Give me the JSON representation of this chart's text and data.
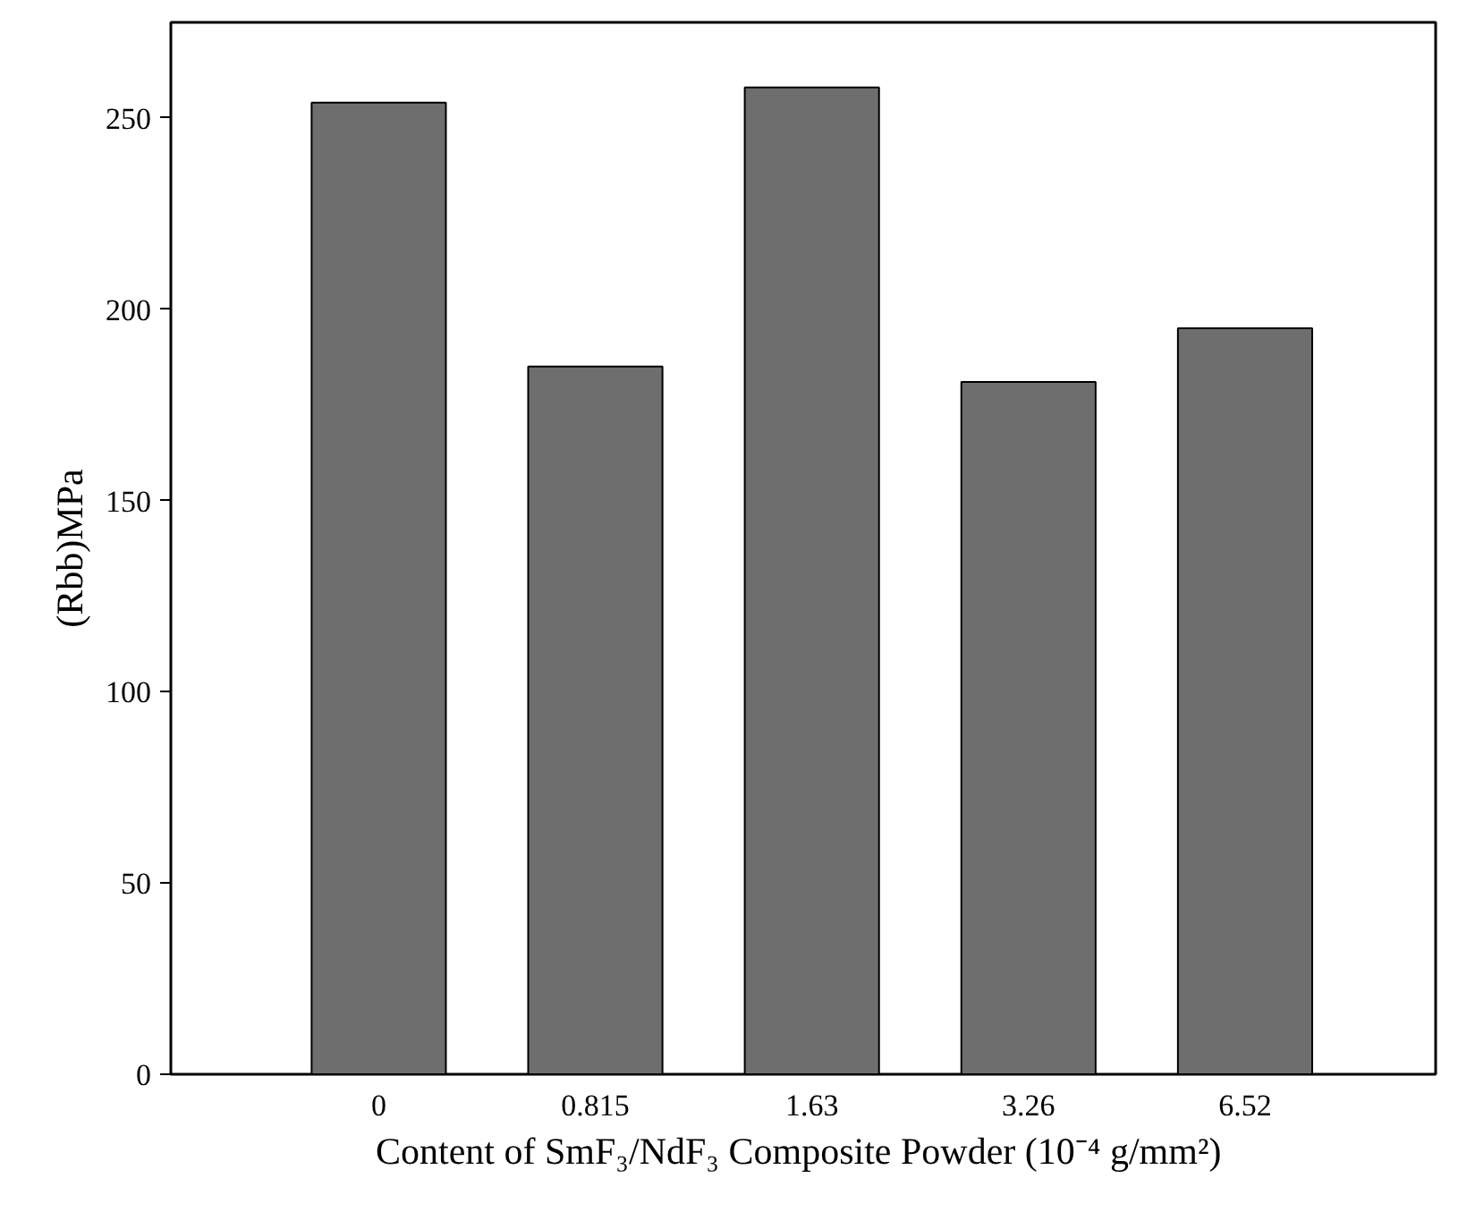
{
  "chart_data": {
    "type": "bar",
    "xlabel": "Content of  SmF₃/NdF₃ Composite Powder (10⁻⁴ g/mm²)",
    "ylabel": "(Rbb)MPa",
    "categories": [
      "0",
      "0.815",
      "1.63",
      "3.26",
      "6.52"
    ],
    "values": [
      254,
      185,
      258,
      181,
      195
    ],
    "color": "#6e6e6e",
    "ylim": [
      0,
      275
    ],
    "yticks": [
      0,
      50,
      100,
      150,
      200,
      250
    ],
    "grid": false
  }
}
